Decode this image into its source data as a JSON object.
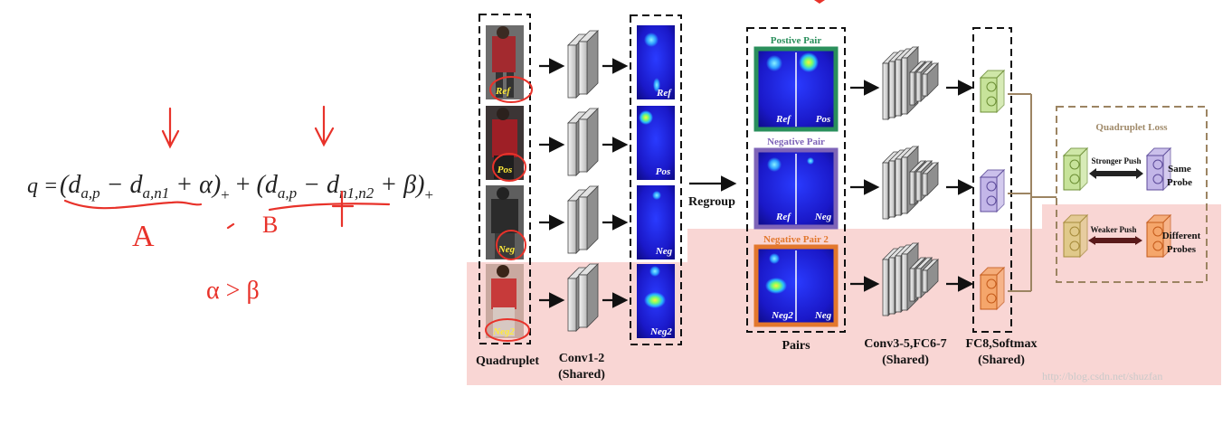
{
  "formula": {
    "prefix": "q =",
    "term1": "(d",
    "sub_ap": "a,p",
    "minus": " − d",
    "sub_an1": "a,n1",
    "plus_alpha": " + α)",
    "plus_sub": "+",
    "join": " + ",
    "term2": "(d",
    "sub_n1n2": "n1,n2",
    "plus_beta": " + β)",
    "handwritten": {
      "label_a": "A",
      "label_b": "B",
      "inequality": "α > β"
    }
  },
  "diagram": {
    "images": [
      {
        "tag": "Ref"
      },
      {
        "tag": "Pos"
      },
      {
        "tag": "Neg"
      },
      {
        "tag": "Neg2"
      }
    ],
    "feature_tags": [
      "Ref",
      "Pos",
      "Neg",
      "Neg2"
    ],
    "captions": {
      "quadruplet": "Quadruplet",
      "conv12": "Conv1-2",
      "conv12_shared": "(Shared)",
      "regroup": "Regroup",
      "pairs": "Pairs",
      "conv35": "Conv3-5,FC6-7",
      "conv35_shared": "(Shared)",
      "fc8": "FC8,Softmax",
      "fc8_shared": "(Shared)"
    },
    "pairs": [
      {
        "title": "Postive Pair",
        "left": "Ref",
        "right": "Pos",
        "color": "#2a8f5c"
      },
      {
        "title": "Negative Pair",
        "left": "Ref",
        "right": "Neg",
        "color": "#7e64b8"
      },
      {
        "title": "Negative Pair 2",
        "left": "Neg2",
        "right": "Neg",
        "color": "#e3772d"
      }
    ],
    "loss": {
      "title": "Quadruplet Loss",
      "stronger_push": "Stronger Push",
      "same_probe": [
        "Same",
        "Probe"
      ],
      "weaker_push": "Weaker Push",
      "different_probes": [
        "Different",
        "Probes"
      ]
    },
    "watermark": "http://blog.csdn.net/shuzfan"
  },
  "colors": {
    "highlight": "#f9d6d4",
    "annotation_red": "#e8322a",
    "loss_border": "#9c8462",
    "fc_green": "#c7e39a",
    "fc_purple": "#c3b6e8",
    "fc_orange": "#f5a66b"
  }
}
